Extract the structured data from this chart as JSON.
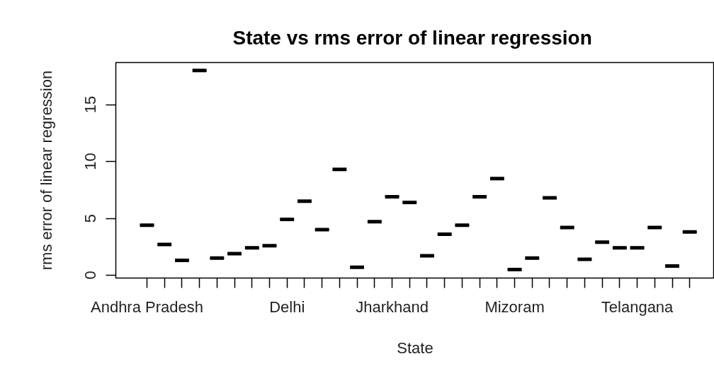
{
  "chart_data": {
    "type": "box",
    "title": "State  vs rms error of linear regression",
    "xlabel": "State",
    "ylabel": "rms error of linear regression",
    "categories": [
      "Andhra Pradesh",
      null,
      null,
      null,
      null,
      null,
      null,
      null,
      "Delhi",
      null,
      null,
      null,
      null,
      null,
      "Jharkhand",
      null,
      null,
      null,
      null,
      null,
      null,
      "Mizoram",
      null,
      null,
      null,
      null,
      null,
      null,
      "Telangana",
      null,
      null,
      null
    ],
    "boxes": [
      {
        "low": 4.4,
        "q1": 4.4,
        "median": 4.4,
        "q3": 4.4,
        "high": 4.4
      },
      {
        "low": 2.7,
        "q1": 2.7,
        "median": 2.7,
        "q3": 2.7,
        "high": 2.7
      },
      {
        "low": 1.3,
        "q1": 1.3,
        "median": 1.3,
        "q3": 1.3,
        "high": 1.3
      },
      {
        "low": 18.0,
        "q1": 18.0,
        "median": 18.0,
        "q3": 18.0,
        "high": 18.0
      },
      {
        "low": 1.5,
        "q1": 1.5,
        "median": 1.5,
        "q3": 1.5,
        "high": 1.5
      },
      {
        "low": 1.9,
        "q1": 1.9,
        "median": 1.9,
        "q3": 1.9,
        "high": 1.9
      },
      {
        "low": 2.4,
        "q1": 2.4,
        "median": 2.4,
        "q3": 2.4,
        "high": 2.4
      },
      {
        "low": 2.6,
        "q1": 2.6,
        "median": 2.6,
        "q3": 2.6,
        "high": 2.6
      },
      {
        "low": 4.9,
        "q1": 4.9,
        "median": 4.9,
        "q3": 4.9,
        "high": 4.9
      },
      {
        "low": 6.5,
        "q1": 6.5,
        "median": 6.5,
        "q3": 6.5,
        "high": 6.5
      },
      {
        "low": 4.0,
        "q1": 4.0,
        "median": 4.0,
        "q3": 4.0,
        "high": 4.0
      },
      {
        "low": 9.3,
        "q1": 9.3,
        "median": 9.3,
        "q3": 9.3,
        "high": 9.3
      },
      {
        "low": 0.7,
        "q1": 0.7,
        "median": 0.7,
        "q3": 0.7,
        "high": 0.7
      },
      {
        "low": 4.7,
        "q1": 4.7,
        "median": 4.7,
        "q3": 4.7,
        "high": 4.7
      },
      {
        "low": 6.9,
        "q1": 6.9,
        "median": 6.9,
        "q3": 6.9,
        "high": 6.9
      },
      {
        "low": 6.4,
        "q1": 6.4,
        "median": 6.4,
        "q3": 6.4,
        "high": 6.4
      },
      {
        "low": 1.7,
        "q1": 1.7,
        "median": 1.7,
        "q3": 1.7,
        "high": 1.7
      },
      {
        "low": 3.6,
        "q1": 3.6,
        "median": 3.6,
        "q3": 3.6,
        "high": 3.6
      },
      {
        "low": 4.4,
        "q1": 4.4,
        "median": 4.4,
        "q3": 4.4,
        "high": 4.4
      },
      {
        "low": 6.9,
        "q1": 6.9,
        "median": 6.9,
        "q3": 6.9,
        "high": 6.9
      },
      {
        "low": 8.5,
        "q1": 8.5,
        "median": 8.5,
        "q3": 8.5,
        "high": 8.5
      },
      {
        "low": 0.5,
        "q1": 0.5,
        "median": 0.5,
        "q3": 0.5,
        "high": 0.5
      },
      {
        "low": 1.5,
        "q1": 1.5,
        "median": 1.5,
        "q3": 1.5,
        "high": 1.5
      },
      {
        "low": 6.8,
        "q1": 6.8,
        "median": 6.8,
        "q3": 6.8,
        "high": 6.8
      },
      {
        "low": 4.2,
        "q1": 4.2,
        "median": 4.2,
        "q3": 4.2,
        "high": 4.2
      },
      {
        "low": 1.4,
        "q1": 1.4,
        "median": 1.4,
        "q3": 1.4,
        "high": 1.4
      },
      {
        "low": 2.9,
        "q1": 2.9,
        "median": 2.9,
        "q3": 2.9,
        "high": 2.9
      },
      {
        "low": 2.4,
        "q1": 2.4,
        "median": 2.4,
        "q3": 2.4,
        "high": 2.4
      },
      {
        "low": 2.4,
        "q1": 2.4,
        "median": 2.4,
        "q3": 2.4,
        "high": 2.4
      },
      {
        "low": 4.2,
        "q1": 4.2,
        "median": 4.2,
        "q3": 4.2,
        "high": 4.2
      },
      {
        "low": 0.8,
        "q1": 0.8,
        "median": 0.8,
        "q3": 0.8,
        "high": 0.8
      },
      {
        "low": 3.8,
        "q1": 3.8,
        "median": 3.8,
        "q3": 3.8,
        "high": 3.8
      }
    ],
    "color": "#000000",
    "ylim": [
      -0.25,
      18.7
    ],
    "yticks": [
      0,
      5,
      10,
      15
    ],
    "grid": false
  }
}
